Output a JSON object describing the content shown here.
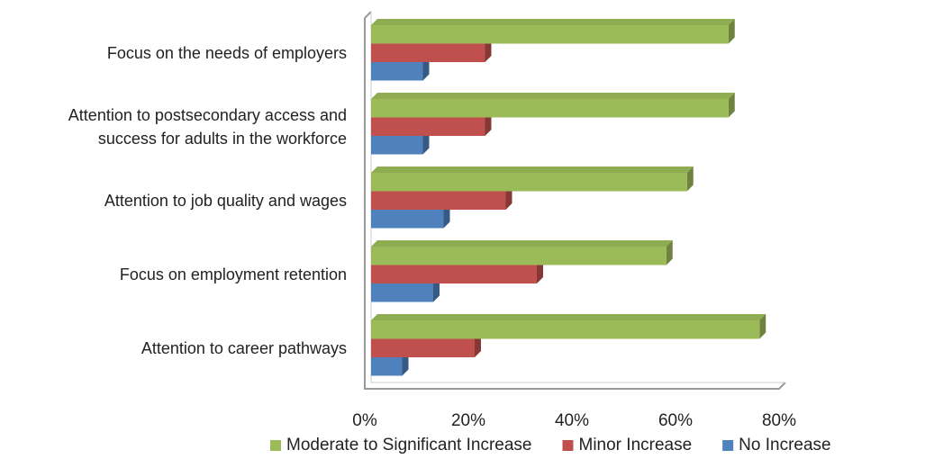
{
  "chart_data": {
    "type": "bar",
    "orientation": "horizontal",
    "categories": [
      "Focus on the needs of employers",
      "Attention to postsecondary access and\nsuccess for adults in the workforce",
      "Attention to job quality and wages",
      "Focus on employment retention",
      "Attention to career pathways"
    ],
    "series": [
      {
        "name": "Moderate to Significant Increase",
        "color": "#9bbb59",
        "values": [
          69,
          69,
          61,
          57,
          75
        ]
      },
      {
        "name": "Minor Increase",
        "color": "#c0504d",
        "values": [
          22,
          22,
          26,
          32,
          20
        ]
      },
      {
        "name": "No Increase",
        "color": "#4f81bd",
        "values": [
          10,
          10,
          14,
          12,
          6
        ]
      }
    ],
    "xlim": [
      0,
      80
    ],
    "xticks": [
      {
        "value": 0,
        "label": "0%"
      },
      {
        "value": 20,
        "label": "20%"
      },
      {
        "value": 40,
        "label": "40%"
      },
      {
        "value": 60,
        "label": "60%"
      },
      {
        "value": 80,
        "label": "80%"
      }
    ],
    "legend": "bottom"
  }
}
